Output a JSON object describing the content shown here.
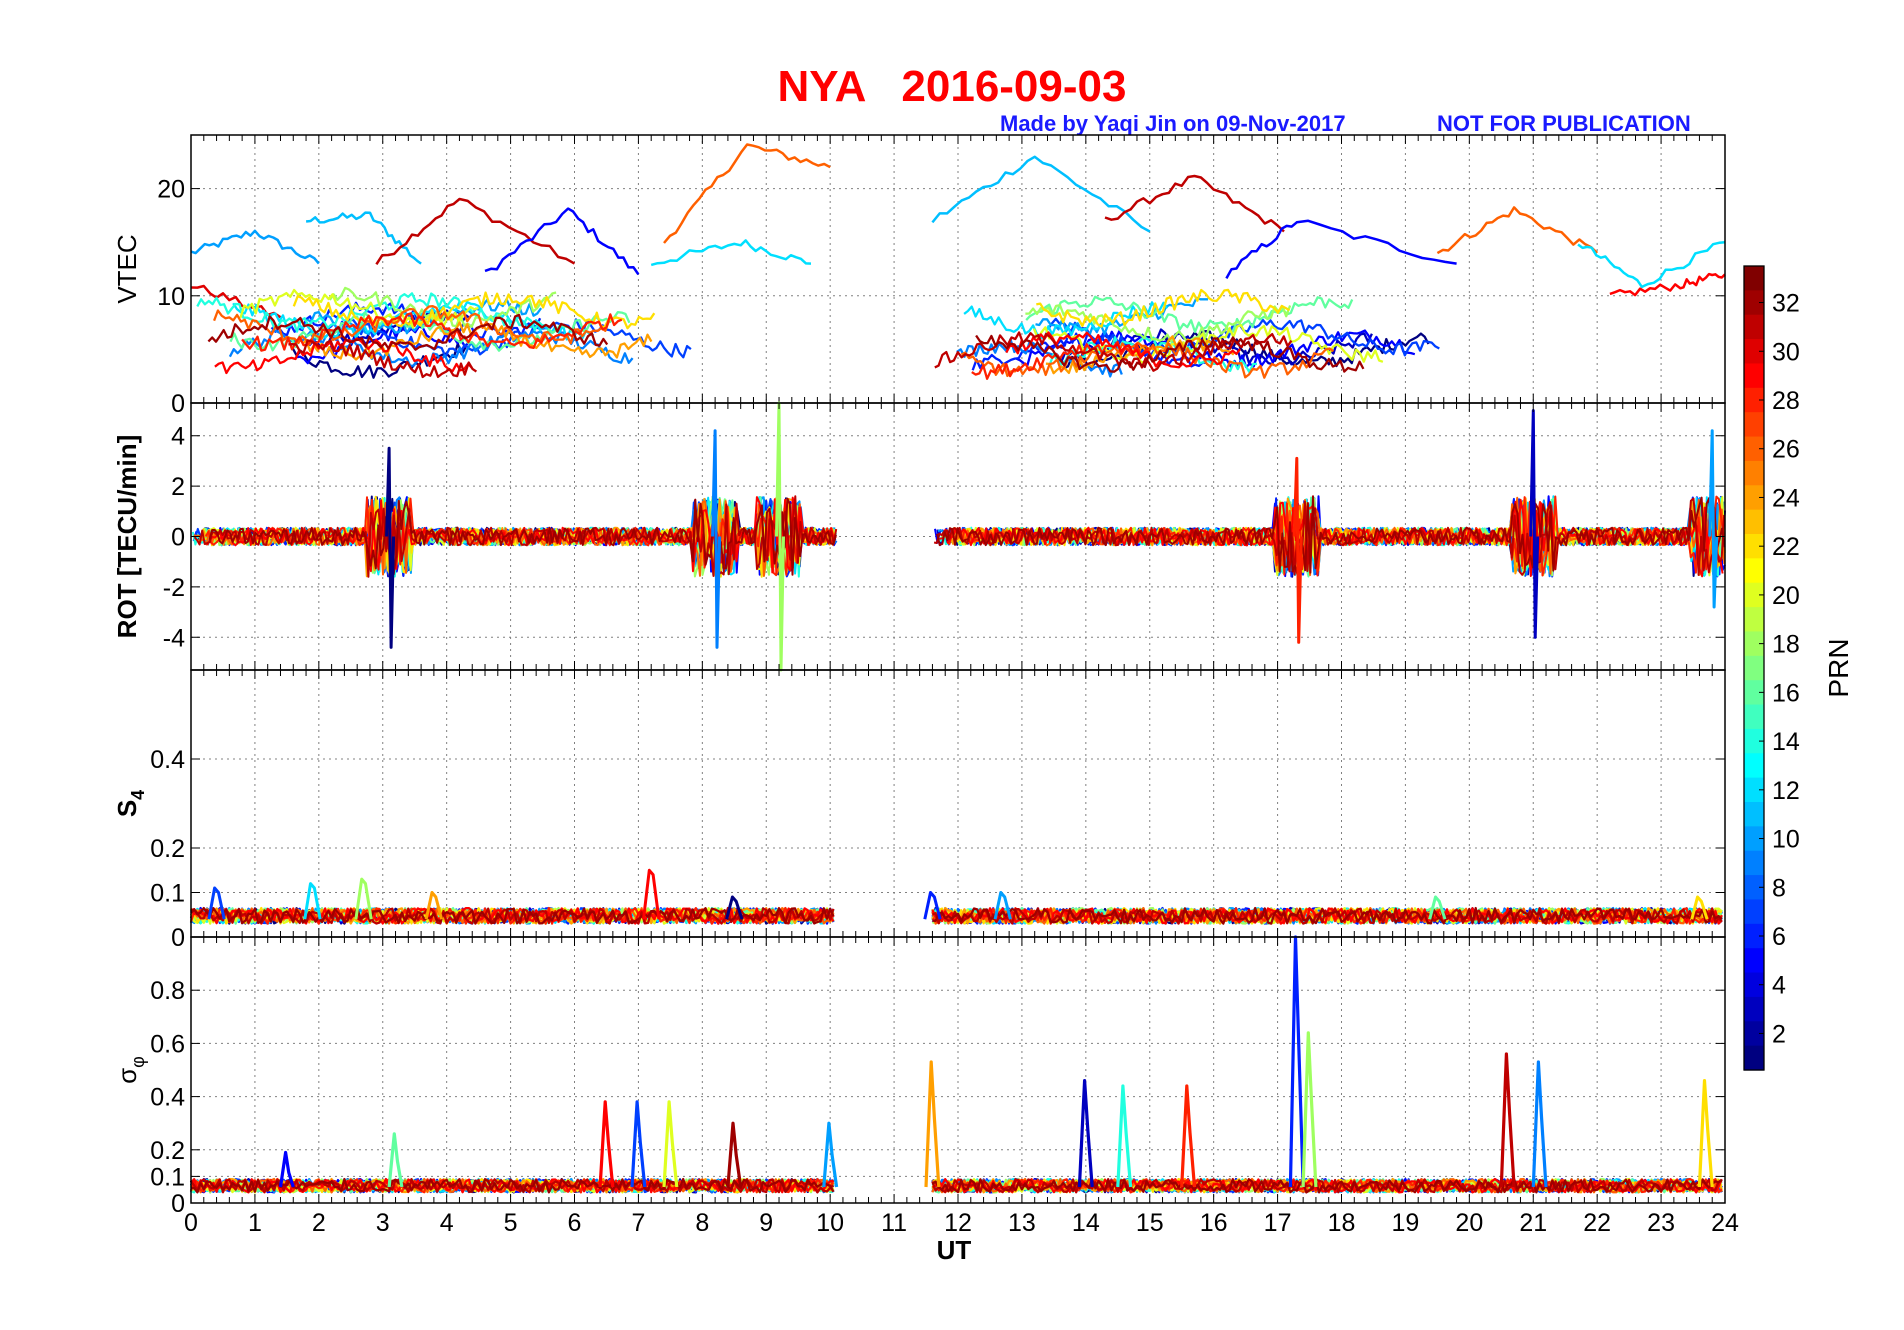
{
  "title": "NYA   2016-09-03",
  "credit": "Made by Yaqi Jin on 09-Nov-2017",
  "notice": "NOT FOR PUBLICATION",
  "colors": {
    "title": "#ff0000",
    "notice": "#1a1aff",
    "axis": "#000000",
    "grid": "#808080"
  },
  "chart_data": [
    {
      "type": "line",
      "panel": "VTEC",
      "ylabel": "VTEC",
      "xlim": [
        0,
        24
      ],
      "ylim": [
        0,
        25
      ],
      "yticks": [
        0,
        10,
        20
      ],
      "grid": true,
      "gap": [
        10.1,
        11.6
      ],
      "series_description_values": "multi-PRN curves colored by PRN",
      "series": [
        {
          "prn": 10,
          "x": [
            0,
            1,
            2
          ],
          "y": [
            14,
            16,
            13
          ]
        },
        {
          "prn": 11,
          "x": [
            1.8,
            2.8,
            3.6
          ],
          "y": [
            17,
            17.5,
            13
          ]
        },
        {
          "prn": 31,
          "x": [
            2.9,
            4.2,
            6
          ],
          "y": [
            13,
            19,
            13
          ]
        },
        {
          "prn": 5,
          "x": [
            4.6,
            5.9,
            7
          ],
          "y": [
            12,
            18,
            12
          ]
        },
        {
          "prn": 26,
          "x": [
            7.4,
            8.7,
            10
          ],
          "y": [
            15,
            24,
            22
          ]
        },
        {
          "prn": 12,
          "x": [
            7.2,
            8.6,
            9.7
          ],
          "y": [
            13,
            15,
            13
          ]
        },
        {
          "prn": 30,
          "x": [
            0,
            1.4
          ],
          "y": [
            11,
            8
          ]
        },
        {
          "prn": 11,
          "x": [
            11.6,
            13.2,
            15
          ],
          "y": [
            17,
            23,
            16
          ]
        },
        {
          "prn": 31,
          "x": [
            14.3,
            15.7,
            17.1
          ],
          "y": [
            17,
            21,
            16
          ]
        },
        {
          "prn": 5,
          "x": [
            16.2,
            17.3,
            19.8
          ],
          "y": [
            12,
            17,
            13
          ]
        },
        {
          "prn": 26,
          "x": [
            19.5,
            20.7,
            22
          ],
          "y": [
            14,
            18,
            14
          ]
        },
        {
          "prn": 12,
          "x": [
            21.7,
            22.7,
            24
          ],
          "y": [
            15,
            11,
            15
          ]
        },
        {
          "prn": 29,
          "x": [
            22.2,
            23.3,
            24
          ],
          "y": [
            10,
            11,
            12
          ]
        }
      ]
    },
    {
      "type": "line",
      "panel": "ROT",
      "ylabel": "ROT [TECU/min]",
      "xlim": [
        0,
        24
      ],
      "ylim": [
        -5.3,
        5.3
      ],
      "yticks": [
        -4,
        -2,
        0,
        2,
        4
      ],
      "grid": true,
      "gap": [
        10.1,
        11.6
      ],
      "events": [
        {
          "x": 3.1,
          "min": -4.4,
          "max": 3.5
        },
        {
          "x": 8.2,
          "min": -4.4,
          "max": 4.2
        },
        {
          "x": 9.2,
          "min": -5.3,
          "max": 5.3
        },
        {
          "x": 17.3,
          "min": -4.2,
          "max": 3.1
        },
        {
          "x": 21.0,
          "min": -4.0,
          "max": 5.0
        },
        {
          "x": 23.8,
          "min": -2.8,
          "max": 4.2
        }
      ]
    },
    {
      "type": "line",
      "panel": "S4",
      "ylabel": "S4",
      "xlim": [
        0,
        24
      ],
      "ylim": [
        0,
        0.6
      ],
      "yticks": [
        0,
        0.1,
        0.2,
        0.4
      ],
      "grid": true,
      "gap": [
        10.1,
        11.6
      ],
      "peaks": [
        {
          "x": 0.4,
          "y": 0.11
        },
        {
          "x": 1.9,
          "y": 0.12
        },
        {
          "x": 2.7,
          "y": 0.13
        },
        {
          "x": 3.8,
          "y": 0.1
        },
        {
          "x": 7.2,
          "y": 0.15
        },
        {
          "x": 8.5,
          "y": 0.09
        },
        {
          "x": 11.6,
          "y": 0.1
        },
        {
          "x": 12.7,
          "y": 0.1
        },
        {
          "x": 19.5,
          "y": 0.09
        },
        {
          "x": 23.6,
          "y": 0.09
        }
      ]
    },
    {
      "type": "line",
      "panel": "sigma_phi",
      "ylabel": "σ",
      "ylabel_sub": "φ",
      "xlabel": "UT",
      "xlim": [
        0,
        24
      ],
      "ylim": [
        0,
        1
      ],
      "yticks": [
        0,
        0.1,
        0.2,
        0.4,
        0.6,
        0.8
      ],
      "xticks": [
        0,
        1,
        2,
        3,
        4,
        5,
        6,
        7,
        8,
        9,
        10,
        11,
        12,
        13,
        14,
        15,
        16,
        17,
        18,
        19,
        20,
        21,
        22,
        23,
        24
      ],
      "grid": true,
      "gap": [
        10.1,
        11.6
      ],
      "peaks": [
        {
          "x": 1.5,
          "y": 0.19
        },
        {
          "x": 3.2,
          "y": 0.26
        },
        {
          "x": 6.5,
          "y": 0.38
        },
        {
          "x": 7.0,
          "y": 0.38
        },
        {
          "x": 7.5,
          "y": 0.38
        },
        {
          "x": 8.5,
          "y": 0.3
        },
        {
          "x": 10.0,
          "y": 0.3
        },
        {
          "x": 11.6,
          "y": 0.53
        },
        {
          "x": 14.0,
          "y": 0.46
        },
        {
          "x": 14.6,
          "y": 0.44
        },
        {
          "x": 15.6,
          "y": 0.44
        },
        {
          "x": 17.3,
          "y": 1.0
        },
        {
          "x": 17.5,
          "y": 0.64
        },
        {
          "x": 20.6,
          "y": 0.56
        },
        {
          "x": 21.1,
          "y": 0.53
        },
        {
          "x": 23.7,
          "y": 0.46
        }
      ]
    }
  ],
  "colorbar": {
    "label": "PRN",
    "range": [
      1,
      33
    ],
    "ticks": [
      "2",
      "4",
      "6",
      "8",
      "10",
      "12",
      "14",
      "16",
      "18",
      "20",
      "22",
      "24",
      "26",
      "28",
      "30",
      "32"
    ],
    "ticks_num": [
      2,
      4,
      6,
      8,
      10,
      12,
      14,
      16,
      18,
      20,
      22,
      24,
      26,
      28,
      30,
      32
    ]
  }
}
